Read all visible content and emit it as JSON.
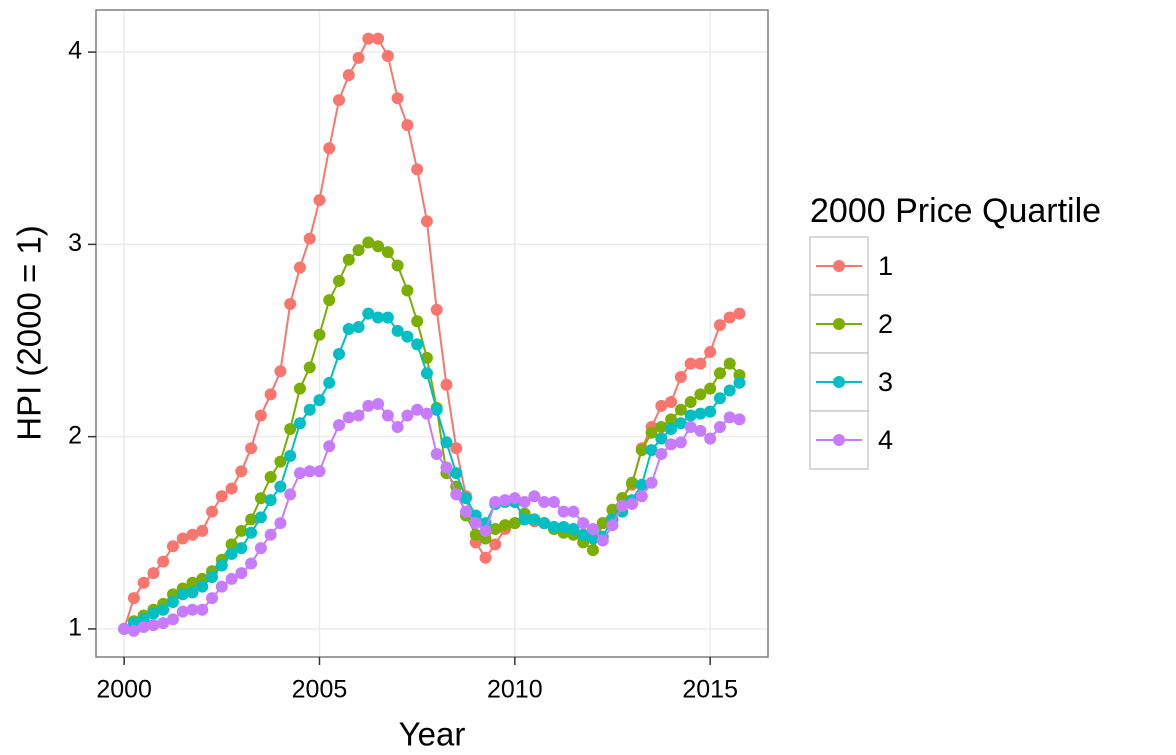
{
  "chart_data": {
    "type": "line",
    "x_label": "Year",
    "y_label": "HPI (2000 = 1)",
    "legend_title": "2000 Price Quartile",
    "legend_position": "right",
    "grid": true,
    "x": [
      2000,
      2000.25,
      2000.5,
      2000.75,
      2001,
      2001.25,
      2001.5,
      2001.75,
      2002,
      2002.25,
      2002.5,
      2002.75,
      2003,
      2003.25,
      2003.5,
      2003.75,
      2004,
      2004.25,
      2004.5,
      2004.75,
      2005,
      2005.25,
      2005.5,
      2005.75,
      2006,
      2006.25,
      2006.5,
      2006.75,
      2007,
      2007.25,
      2007.5,
      2007.75,
      2008,
      2008.25,
      2008.5,
      2008.75,
      2009,
      2009.25,
      2009.5,
      2009.75,
      2010,
      2010.25,
      2010.5,
      2010.75,
      2011,
      2011.25,
      2011.5,
      2011.75,
      2012,
      2012.25,
      2012.5,
      2012.75,
      2013,
      2013.25,
      2013.5,
      2013.75,
      2014,
      2014.25,
      2014.5,
      2014.75,
      2015,
      2015.25,
      2015.5,
      2015.75
    ],
    "xlim": [
      1999.28,
      2016.48
    ],
    "xticks": [
      2000,
      2005,
      2010,
      2015
    ],
    "ylim": [
      0.854,
      4.219
    ],
    "yticks": [
      1,
      2,
      3,
      4
    ],
    "series": [
      {
        "name": "1",
        "color": "#f8766d",
        "values": [
          1.0,
          1.16,
          1.24,
          1.29,
          1.35,
          1.43,
          1.47,
          1.49,
          1.51,
          1.61,
          1.69,
          1.73,
          1.82,
          1.94,
          2.11,
          2.22,
          2.34,
          2.69,
          2.88,
          3.03,
          3.23,
          3.5,
          3.75,
          3.88,
          3.97,
          4.07,
          4.07,
          3.98,
          3.76,
          3.62,
          3.39,
          3.12,
          2.66,
          2.27,
          1.94,
          1.69,
          1.45,
          1.37,
          1.44,
          1.52,
          1.55,
          1.57,
          1.56,
          1.55,
          1.53,
          1.51,
          1.5,
          1.48,
          1.48,
          1.55,
          1.62,
          1.68,
          1.75,
          1.94,
          2.05,
          2.16,
          2.18,
          2.31,
          2.38,
          2.38,
          2.44,
          2.58,
          2.62,
          2.64
        ]
      },
      {
        "name": "2",
        "color": "#7cae00",
        "values": [
          1.0,
          1.04,
          1.07,
          1.1,
          1.13,
          1.18,
          1.21,
          1.24,
          1.26,
          1.3,
          1.36,
          1.44,
          1.51,
          1.57,
          1.68,
          1.79,
          1.87,
          2.04,
          2.25,
          2.36,
          2.53,
          2.71,
          2.81,
          2.92,
          2.97,
          3.01,
          2.99,
          2.96,
          2.89,
          2.76,
          2.6,
          2.41,
          2.15,
          1.81,
          1.74,
          1.59,
          1.49,
          1.47,
          1.52,
          1.54,
          1.55,
          1.6,
          1.57,
          1.55,
          1.52,
          1.5,
          1.49,
          1.45,
          1.41,
          1.55,
          1.62,
          1.68,
          1.76,
          1.93,
          2.02,
          2.05,
          2.09,
          2.14,
          2.18,
          2.22,
          2.25,
          2.33,
          2.38,
          2.32
        ]
      },
      {
        "name": "3",
        "color": "#00bfc4",
        "values": [
          1.0,
          1.03,
          1.05,
          1.08,
          1.1,
          1.14,
          1.18,
          1.19,
          1.22,
          1.27,
          1.33,
          1.39,
          1.42,
          1.5,
          1.58,
          1.67,
          1.74,
          1.9,
          2.07,
          2.14,
          2.19,
          2.28,
          2.43,
          2.56,
          2.57,
          2.64,
          2.62,
          2.62,
          2.55,
          2.52,
          2.48,
          2.33,
          2.14,
          1.97,
          1.81,
          1.68,
          1.59,
          1.55,
          1.65,
          1.66,
          1.66,
          1.57,
          1.57,
          1.55,
          1.53,
          1.53,
          1.52,
          1.49,
          1.47,
          1.48,
          1.57,
          1.61,
          1.67,
          1.75,
          1.93,
          1.99,
          2.04,
          2.07,
          2.11,
          2.12,
          2.13,
          2.2,
          2.24,
          2.28
        ]
      },
      {
        "name": "4",
        "color": "#c77cff",
        "values": [
          1.0,
          0.99,
          1.01,
          1.02,
          1.03,
          1.05,
          1.09,
          1.1,
          1.1,
          1.16,
          1.22,
          1.26,
          1.29,
          1.34,
          1.42,
          1.49,
          1.55,
          1.7,
          1.81,
          1.82,
          1.82,
          1.95,
          2.06,
          2.1,
          2.11,
          2.16,
          2.17,
          2.11,
          2.05,
          2.11,
          2.14,
          2.12,
          1.91,
          1.84,
          1.7,
          1.61,
          1.55,
          1.51,
          1.66,
          1.67,
          1.68,
          1.66,
          1.69,
          1.66,
          1.66,
          1.61,
          1.61,
          1.55,
          1.52,
          1.46,
          1.54,
          1.64,
          1.65,
          1.69,
          1.76,
          1.91,
          1.96,
          1.97,
          2.05,
          2.03,
          1.99,
          2.05,
          2.1,
          2.09
        ]
      }
    ]
  }
}
